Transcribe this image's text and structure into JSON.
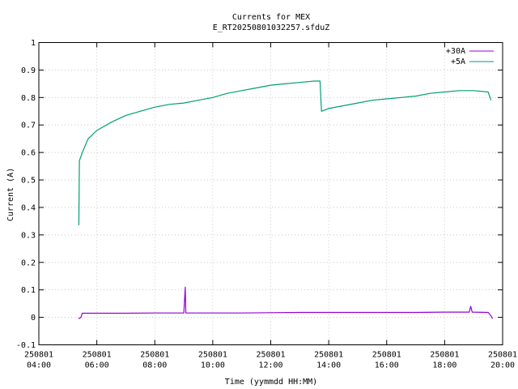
{
  "chart_data": {
    "type": "line",
    "title": "Currents for MEX",
    "subtitle": "E_RT20250801032257.sfduZ",
    "xlabel": "Time (yymmdd HH:MM)",
    "ylabel": "Current (A)",
    "x_unit": "hours",
    "xlim": [
      4,
      20
    ],
    "ylim": [
      -0.1,
      1.0
    ],
    "grid": true,
    "legend_position": "top-right",
    "y_ticks": [
      "-0.1",
      "0",
      "0.1",
      "0.2",
      "0.3",
      "0.4",
      "0.5",
      "0.6",
      "0.7",
      "0.8",
      "0.9",
      "1"
    ],
    "y_tick_values": [
      -0.1,
      0,
      0.1,
      0.2,
      0.3,
      0.4,
      0.5,
      0.6,
      0.7,
      0.8,
      0.9,
      1.0
    ],
    "x_ticks": [
      {
        "value": 4,
        "date": "250801",
        "time": "04:00"
      },
      {
        "value": 6,
        "date": "250801",
        "time": "06:00"
      },
      {
        "value": 8,
        "date": "250801",
        "time": "08:00"
      },
      {
        "value": 10,
        "date": "250801",
        "time": "10:00"
      },
      {
        "value": 12,
        "date": "250801",
        "time": "12:00"
      },
      {
        "value": 14,
        "date": "250801",
        "time": "14:00"
      },
      {
        "value": 16,
        "date": "250801",
        "time": "16:00"
      },
      {
        "value": 18,
        "date": "250801",
        "time": "18:00"
      },
      {
        "value": 20,
        "date": "250801",
        "time": "20:00"
      }
    ],
    "series": [
      {
        "name": "+30A",
        "color": "#9400d3",
        "points": [
          [
            5.37,
            -0.005
          ],
          [
            5.45,
            0.0
          ],
          [
            5.5,
            0.015
          ],
          [
            6.0,
            0.015
          ],
          [
            7.0,
            0.015
          ],
          [
            8.0,
            0.016
          ],
          [
            9.0,
            0.016
          ],
          [
            9.05,
            0.11
          ],
          [
            9.07,
            0.016
          ],
          [
            10.0,
            0.016
          ],
          [
            11.0,
            0.016
          ],
          [
            12.0,
            0.017
          ],
          [
            13.0,
            0.018
          ],
          [
            14.0,
            0.018
          ],
          [
            15.0,
            0.018
          ],
          [
            16.0,
            0.018
          ],
          [
            17.0,
            0.018
          ],
          [
            18.0,
            0.019
          ],
          [
            18.85,
            0.019
          ],
          [
            18.9,
            0.04
          ],
          [
            18.95,
            0.019
          ],
          [
            19.5,
            0.018
          ],
          [
            19.6,
            0.005
          ],
          [
            19.65,
            -0.005
          ]
        ]
      },
      {
        "name": "+5A",
        "color": "#009e73",
        "points": [
          [
            5.38,
            0.335
          ],
          [
            5.4,
            0.57
          ],
          [
            5.5,
            0.6
          ],
          [
            5.7,
            0.65
          ],
          [
            6.0,
            0.68
          ],
          [
            6.5,
            0.71
          ],
          [
            7.0,
            0.735
          ],
          [
            7.5,
            0.75
          ],
          [
            8.0,
            0.765
          ],
          [
            8.5,
            0.775
          ],
          [
            9.0,
            0.78
          ],
          [
            9.5,
            0.79
          ],
          [
            10.0,
            0.8
          ],
          [
            10.5,
            0.815
          ],
          [
            11.0,
            0.825
          ],
          [
            11.5,
            0.835
          ],
          [
            12.0,
            0.845
          ],
          [
            12.5,
            0.85
          ],
          [
            13.0,
            0.855
          ],
          [
            13.5,
            0.86
          ],
          [
            13.7,
            0.86
          ],
          [
            13.75,
            0.75
          ],
          [
            14.0,
            0.76
          ],
          [
            14.5,
            0.77
          ],
          [
            15.0,
            0.78
          ],
          [
            15.5,
            0.79
          ],
          [
            16.0,
            0.795
          ],
          [
            16.5,
            0.8
          ],
          [
            17.0,
            0.805
          ],
          [
            17.5,
            0.815
          ],
          [
            18.0,
            0.82
          ],
          [
            18.5,
            0.825
          ],
          [
            19.0,
            0.825
          ],
          [
            19.5,
            0.82
          ],
          [
            19.6,
            0.79
          ]
        ]
      }
    ]
  }
}
